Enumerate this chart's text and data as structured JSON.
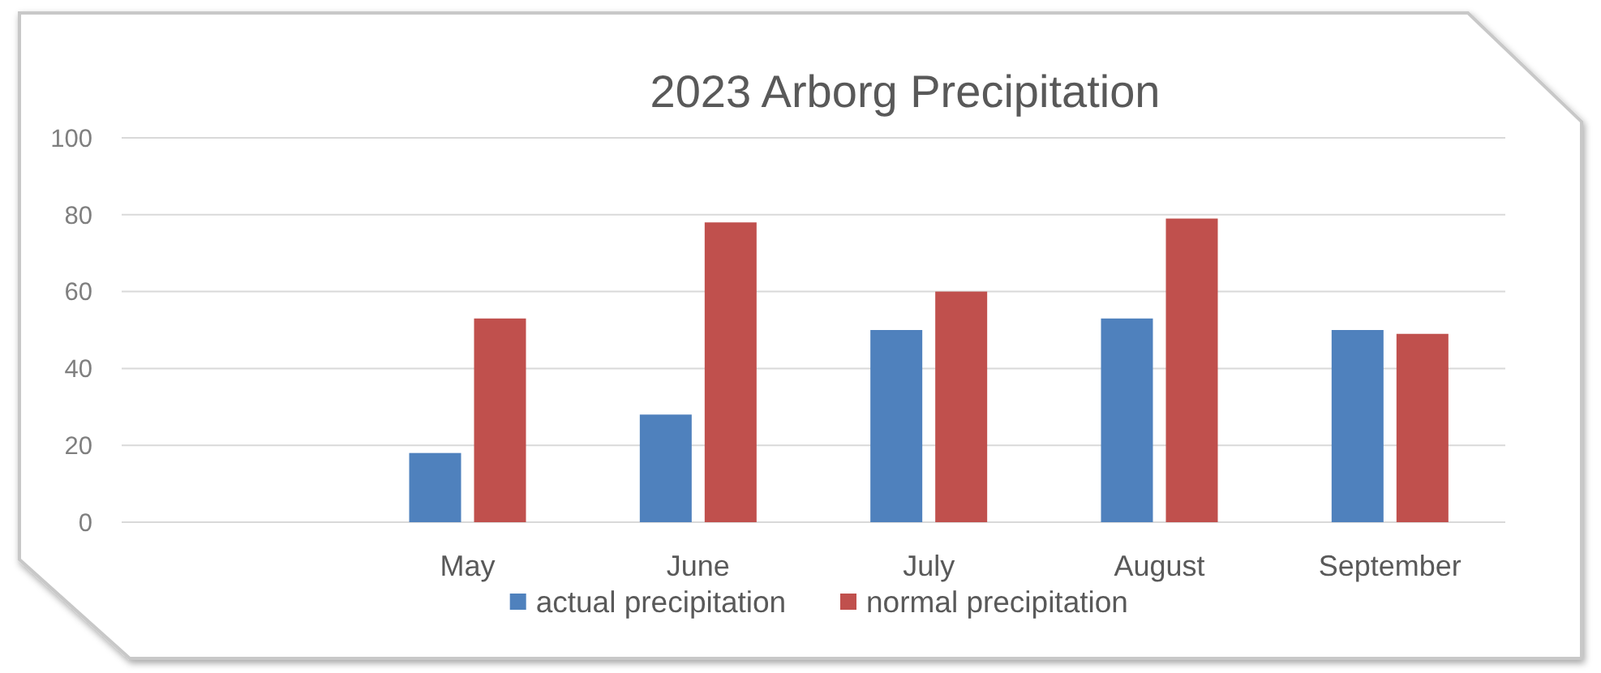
{
  "chart_data": {
    "type": "bar",
    "title": "2023 Arborg Precipitation",
    "categories": [
      null,
      "May",
      "June",
      "July",
      "August",
      "September"
    ],
    "series": [
      {
        "name": "actual precipitation",
        "color": "#4f81bd",
        "values": [
          null,
          18,
          28,
          50,
          53,
          50
        ]
      },
      {
        "name": "normal precipitation",
        "color": "#c0504d",
        "values": [
          null,
          53,
          78,
          60,
          79,
          49
        ]
      }
    ],
    "ylim": [
      0,
      100
    ],
    "yticks": [
      0,
      20,
      40,
      60,
      80,
      100
    ],
    "grid": "y",
    "legend": "bottom"
  }
}
